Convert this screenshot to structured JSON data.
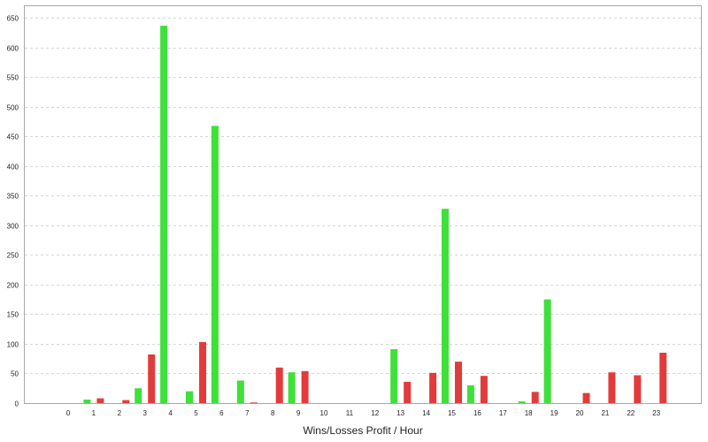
{
  "chart_data": {
    "type": "bar",
    "title": "",
    "xlabel": "Wins/Losses Profit / Hour",
    "ylabel": "",
    "categories": [
      "0",
      "1",
      "2",
      "3",
      "4",
      "5",
      "6",
      "7",
      "8",
      "9",
      "10",
      "11",
      "12",
      "13",
      "14",
      "15",
      "16",
      "17",
      "18",
      "19",
      "20",
      "21",
      "22",
      "23"
    ],
    "ylim": [
      0,
      670
    ],
    "yticks": [
      0,
      50,
      100,
      150,
      200,
      250,
      300,
      350,
      400,
      450,
      500,
      550,
      600,
      650
    ],
    "grid": true,
    "series": [
      {
        "role": "wins",
        "color": "#3fe03a",
        "values": [
          0,
          6,
          0,
          25,
          637,
          20,
          468,
          38,
          0,
          52,
          0,
          0,
          0,
          91,
          0,
          328,
          30,
          0,
          3,
          175,
          0,
          0,
          0,
          0
        ]
      },
      {
        "role": "losses",
        "color": "#e33b3b",
        "values": [
          0,
          8,
          5,
          82,
          0,
          103,
          0,
          1,
          60,
          54,
          0,
          0,
          0,
          36,
          51,
          70,
          46,
          0,
          19,
          0,
          17,
          52,
          47,
          85
        ]
      }
    ]
  }
}
